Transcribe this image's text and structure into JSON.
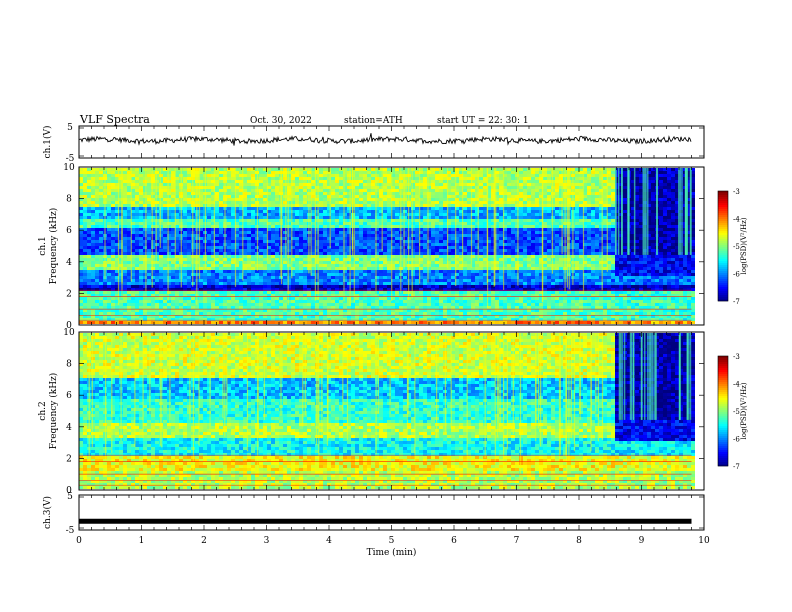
{
  "header": {
    "title": "VLF  Spectra",
    "date": "Oct. 30, 2022",
    "station": "station=ATH",
    "start": "start  UT  =    22: 30: 1"
  },
  "chart_data": [
    {
      "type": "line",
      "name": "ch1-waveform",
      "ylabel": "ch.1(V)",
      "ylim": [
        -5,
        5
      ],
      "yticks": [
        "5",
        "-5"
      ],
      "xlim": [
        0,
        10
      ],
      "x_range": [
        0,
        9.8
      ],
      "approx_level": 0.6,
      "approx_noise": 0.8
    },
    {
      "type": "heatmap",
      "name": "ch1-spectrogram",
      "ylabel_line1": "ch.1",
      "ylabel_line2": "Frequency  (kHz)",
      "ylim": [
        0,
        10
      ],
      "yticks": [
        "0",
        "2",
        "4",
        "6",
        "8",
        "10"
      ],
      "xlim": [
        0,
        10
      ],
      "x_range": [
        0,
        9.8
      ],
      "change_time_min": 8.55,
      "colorbar": {
        "label": "log(PSD)(V²/Hz)",
        "range": [
          -7,
          -3
        ],
        "ticks": [
          "-3",
          "-4",
          "-5",
          "-6",
          "-7"
        ]
      }
    },
    {
      "type": "heatmap",
      "name": "ch2-spectrogram",
      "ylabel_line1": "ch.2",
      "ylabel_line2": "Frequency  (kHz)",
      "ylim": [
        0,
        10
      ],
      "yticks": [
        "0",
        "2",
        "4",
        "6",
        "8",
        "10"
      ],
      "xlim": [
        0,
        10
      ],
      "x_range": [
        0,
        9.8
      ],
      "change_time_min": 8.55,
      "colorbar": {
        "label": "log(PSD)(V²/Hz)",
        "range": [
          -7,
          -3
        ],
        "ticks": [
          "-3",
          "-4",
          "-5",
          "-6",
          "-7"
        ]
      }
    },
    {
      "type": "line",
      "name": "ch3-waveform",
      "ylabel": "ch.3(V)",
      "ylim": [
        -5,
        5
      ],
      "yticks": [
        "5",
        "-5"
      ],
      "xlim": [
        0,
        10
      ],
      "x_range": [
        0,
        9.8
      ],
      "approx_level": -2.5,
      "xlabel": "Time  (min)",
      "xticks": [
        "0",
        "1",
        "2",
        "3",
        "4",
        "5",
        "6",
        "7",
        "8",
        "9",
        "10"
      ]
    }
  ]
}
